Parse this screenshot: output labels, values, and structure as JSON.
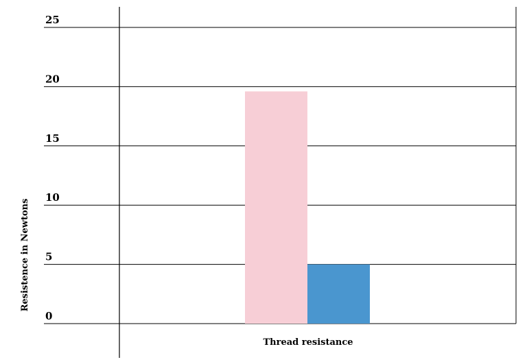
{
  "chart_data": {
    "type": "bar",
    "title": "",
    "xlabel": "Thread resistance",
    "ylabel": "Resistence  in Newtons",
    "ylim": [
      0,
      25
    ],
    "yticks": [
      0,
      5,
      10,
      15,
      20,
      25
    ],
    "grid": true,
    "legend": "none",
    "categories": [
      ""
    ],
    "series": [
      {
        "values": [
          19.6
        ],
        "color": "#f7ced6"
      },
      {
        "values": [
          5
        ],
        "color": "#4a96cf"
      }
    ]
  }
}
